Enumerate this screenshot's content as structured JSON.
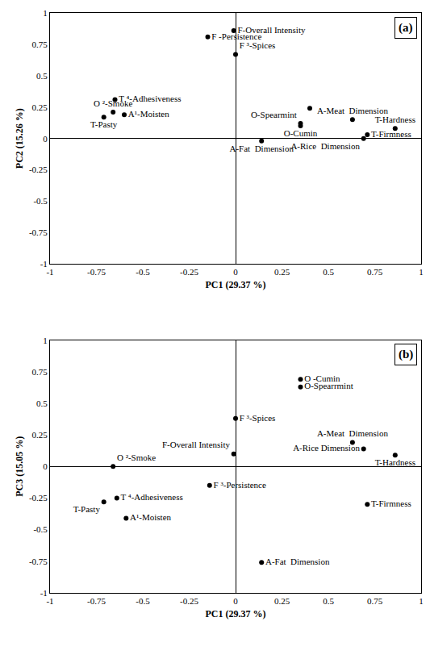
{
  "chart_data": [
    {
      "type": "scatter",
      "annotation": "(a)",
      "x_label": "PC1 (29.37 %)",
      "y_label": "PC2 (15.26 %)",
      "labels": [
        "F-Overall Intensity",
        "F -Persistence",
        "F ³-Spices",
        "T ⁴-Adhesiveness",
        "O ²-Smoke",
        "A¹-Moisten",
        "T-Pasty",
        "O-Spearmint",
        "O-Cumin",
        null,
        "A-Fat  Dimension",
        "A-Meat  Dimension",
        "T-Hardness",
        "T-Firmness",
        "A-Rice  Dimension"
      ],
      "x": [
        -0.01,
        -0.15,
        0.0,
        -0.65,
        -0.66,
        -0.6,
        -0.71,
        0.35,
        0.35,
        0.4,
        0.14,
        0.63,
        0.86,
        0.71,
        0.69
      ],
      "y": [
        0.86,
        0.81,
        0.67,
        0.31,
        0.21,
        0.19,
        0.17,
        0.12,
        0.1,
        0.24,
        -0.02,
        0.15,
        0.08,
        0.03,
        0.0
      ],
      "xlim": [
        -1,
        1
      ],
      "ylim": [
        -1,
        1
      ],
      "xticks": [
        -1,
        -0.75,
        -0.5,
        -0.25,
        0,
        0.25,
        0.5,
        0.75,
        1
      ],
      "yticks": [
        -1,
        -0.75,
        -0.5,
        -0.25,
        0,
        0.25,
        0.5,
        0.75,
        1
      ],
      "color": "#000000",
      "marker": "circle",
      "grid": false
    },
    {
      "type": "scatter",
      "annotation": "(b)",
      "x_label": "PC1 (29.37 %)",
      "y_label": "PC3 (15.05 %)",
      "labels": [
        "O -Cumin",
        "O-Spearrmint",
        "F ³-Spices",
        "A-Meat  Dimension",
        "A-Rice Dimension",
        "T-Hardness",
        "F-Overall Intensity",
        "O ²-Smoke",
        "F ³-Persistence",
        "T ⁴-Adhesiveness",
        "T-Pasty",
        "A¹-Moisten",
        "T-Firmness",
        "A-Fat  Dimension"
      ],
      "x": [
        0.35,
        0.35,
        0.0,
        0.63,
        0.69,
        0.86,
        -0.01,
        -0.66,
        -0.14,
        -0.64,
        -0.71,
        -0.59,
        0.71,
        0.14
      ],
      "y": [
        0.69,
        0.63,
        0.38,
        0.19,
        0.14,
        0.09,
        0.1,
        0.0,
        -0.15,
        -0.25,
        -0.28,
        -0.41,
        -0.3,
        -0.76
      ],
      "xlim": [
        -1,
        1
      ],
      "ylim": [
        -1,
        1
      ],
      "xticks": [
        -1,
        -0.75,
        -0.5,
        -0.25,
        0,
        0.25,
        0.5,
        0.75,
        1
      ],
      "yticks": [
        -1,
        -0.75,
        -0.5,
        -0.25,
        0,
        0.25,
        0.5,
        0.75,
        1
      ],
      "color": "#000000",
      "marker": "circle",
      "grid": false
    }
  ]
}
